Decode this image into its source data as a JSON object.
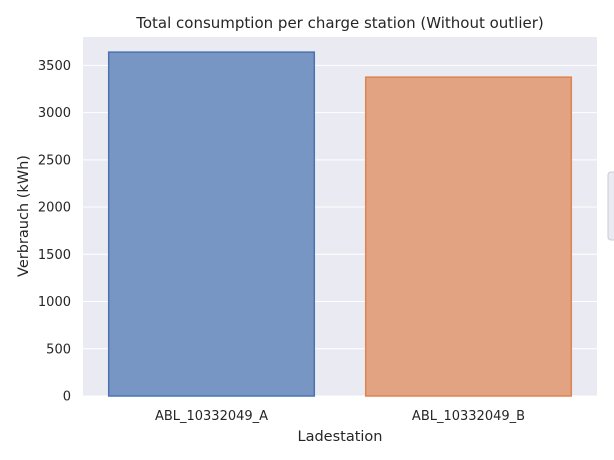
{
  "chart_data": {
    "type": "bar",
    "title": "Total consumption per charge station (Without outlier)",
    "xlabel": "Ladestation",
    "ylabel": "Verbrauch (kWh)",
    "categories": [
      "ABL_10332049_A",
      "ABL_10332049_B"
    ],
    "values": [
      3640,
      3375
    ],
    "ylim": [
      0,
      3800
    ],
    "yticks": [
      0,
      500,
      1000,
      1500,
      2000,
      2500,
      3000,
      3500
    ],
    "grid": true,
    "legend": "right (clipped, empty)",
    "colors": {
      "background": "#eaeaf2",
      "grid": "#ffffff",
      "bar_fills": [
        "#7896c3",
        "#e1a382"
      ],
      "bar_edges": [
        "#4c72b0",
        "#dd8452"
      ]
    }
  }
}
